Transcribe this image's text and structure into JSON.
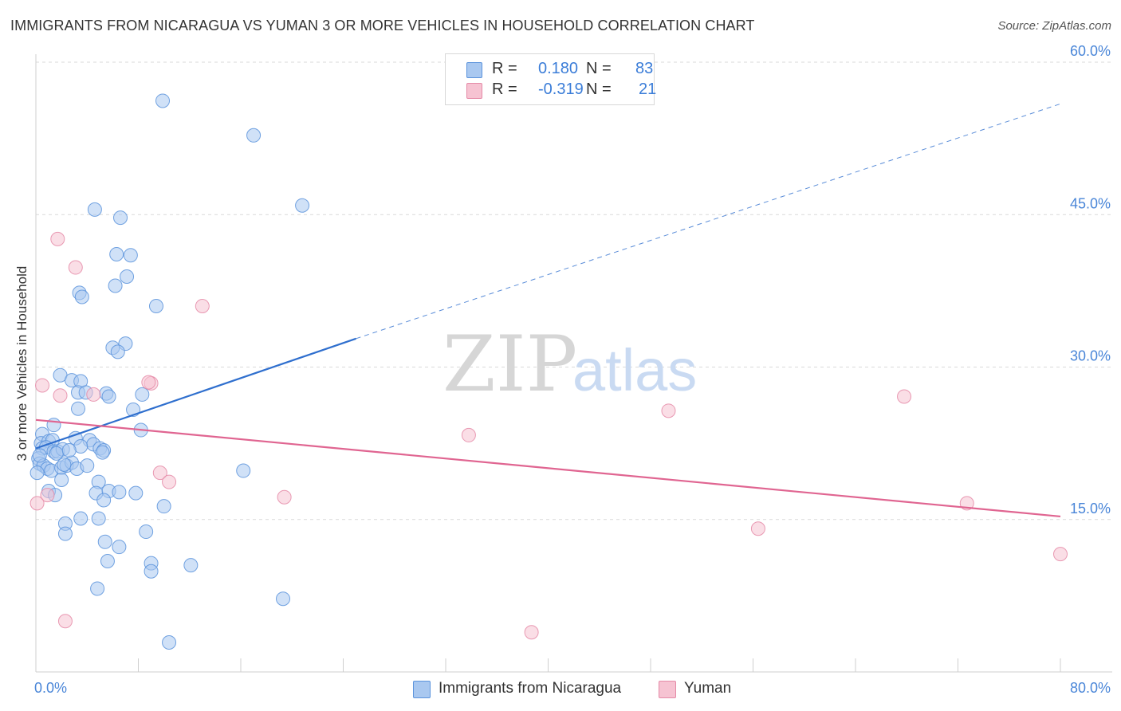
{
  "title": "IMMIGRANTS FROM NICARAGUA VS YUMAN 3 OR MORE VEHICLES IN HOUSEHOLD CORRELATION CHART",
  "source": "Source: ZipAtlas.com",
  "watermark": {
    "zip": "ZIP",
    "atlas": "atlas"
  },
  "stats": [
    {
      "r_label": "R =",
      "r_value": "0.180",
      "n_label": "N =",
      "n_value": "83"
    },
    {
      "r_label": "R =",
      "r_value": "-0.319",
      "n_label": "N =",
      "n_value": "21"
    }
  ],
  "colors": {
    "blue_fill": "#a9c8f0",
    "blue_stroke": "#5b93dc",
    "blue_line": "#2f6fce",
    "pink_fill": "#f6c3d2",
    "pink_stroke": "#e58aa7",
    "pink_line": "#e06591",
    "axis_text": "#4a86d8",
    "grid": "#d9d9d9"
  },
  "chart_data": {
    "type": "scatter",
    "title": "IMMIGRANTS FROM NICARAGUA VS YUMAN 3 OR MORE VEHICLES IN HOUSEHOLD CORRELATION CHART",
    "xlabel": "",
    "ylabel": "3 or more Vehicles in Household",
    "xlim": [
      0,
      80
    ],
    "ylim": [
      0,
      60
    ],
    "x_tick_labels": [
      {
        "value": 0,
        "label": "0.0%"
      },
      {
        "value": 80,
        "label": "80.0%"
      }
    ],
    "y_tick_labels": [
      {
        "value": 15,
        "label": "15.0%"
      },
      {
        "value": 30,
        "label": "30.0%"
      },
      {
        "value": 45,
        "label": "45.0%"
      },
      {
        "value": 60,
        "label": "60.0%"
      }
    ],
    "x_minor_ticks": [
      8,
      16,
      24,
      32,
      40,
      48,
      56,
      64,
      72,
      80
    ],
    "grid": true,
    "legend": "bottom-center",
    "series": [
      {
        "name": "Immigrants from Nicaragua",
        "color": "#a9c8f0",
        "trend": {
          "x_start": 0,
          "y_start": 22.0,
          "x_end_solid": 25,
          "y_end_solid": 32.8,
          "x_end_dashed": 80,
          "y_end_dashed": 55.9
        },
        "points": [
          [
            9.9,
            56.2
          ],
          [
            17.0,
            52.8
          ],
          [
            20.8,
            45.9
          ],
          [
            4.6,
            45.5
          ],
          [
            6.6,
            44.7
          ],
          [
            6.3,
            41.1
          ],
          [
            7.4,
            41.0
          ],
          [
            7.1,
            38.9
          ],
          [
            6.2,
            38.0
          ],
          [
            3.4,
            37.3
          ],
          [
            3.6,
            36.9
          ],
          [
            9.4,
            36.0
          ],
          [
            7.0,
            32.3
          ],
          [
            6.0,
            31.9
          ],
          [
            6.4,
            31.5
          ],
          [
            1.9,
            29.2
          ],
          [
            2.8,
            28.7
          ],
          [
            3.5,
            28.6
          ],
          [
            3.3,
            27.5
          ],
          [
            3.9,
            27.5
          ],
          [
            5.5,
            27.4
          ],
          [
            5.7,
            27.1
          ],
          [
            8.3,
            27.3
          ],
          [
            3.3,
            25.9
          ],
          [
            7.6,
            25.8
          ],
          [
            1.4,
            24.3
          ],
          [
            8.2,
            23.8
          ],
          [
            0.5,
            23.4
          ],
          [
            0.4,
            22.5
          ],
          [
            1.0,
            22.7
          ],
          [
            1.3,
            22.8
          ],
          [
            4.2,
            22.8
          ],
          [
            3.1,
            23.0
          ],
          [
            4.5,
            22.4
          ],
          [
            0.5,
            22.0
          ],
          [
            0.8,
            22.1
          ],
          [
            1.4,
            21.7
          ],
          [
            1.7,
            21.7
          ],
          [
            2.1,
            21.9
          ],
          [
            1.6,
            21.5
          ],
          [
            5.0,
            22.0
          ],
          [
            5.3,
            21.8
          ],
          [
            3.5,
            22.2
          ],
          [
            5.2,
            21.6
          ],
          [
            0.2,
            21.0
          ],
          [
            0.3,
            20.5
          ],
          [
            0.6,
            20.3
          ],
          [
            0.9,
            20.0
          ],
          [
            1.2,
            19.8
          ],
          [
            2.0,
            20.1
          ],
          [
            2.4,
            20.3
          ],
          [
            2.8,
            20.6
          ],
          [
            3.2,
            20.0
          ],
          [
            4.0,
            20.3
          ],
          [
            2.2,
            20.4
          ],
          [
            0.1,
            19.6
          ],
          [
            2.0,
            18.9
          ],
          [
            4.9,
            18.7
          ],
          [
            16.2,
            19.8
          ],
          [
            1.0,
            17.8
          ],
          [
            1.5,
            17.4
          ],
          [
            4.7,
            17.6
          ],
          [
            5.7,
            17.8
          ],
          [
            6.5,
            17.7
          ],
          [
            7.8,
            17.6
          ],
          [
            5.3,
            16.9
          ],
          [
            10.0,
            16.3
          ],
          [
            3.5,
            15.1
          ],
          [
            4.9,
            15.1
          ],
          [
            2.3,
            14.6
          ],
          [
            2.3,
            13.6
          ],
          [
            8.6,
            13.8
          ],
          [
            5.4,
            12.8
          ],
          [
            6.5,
            12.3
          ],
          [
            9.0,
            10.7
          ],
          [
            12.1,
            10.5
          ],
          [
            5.6,
            10.9
          ],
          [
            9.0,
            9.9
          ],
          [
            4.8,
            8.2
          ],
          [
            19.3,
            7.2
          ],
          [
            10.4,
            2.9
          ],
          [
            0.3,
            21.3
          ],
          [
            2.6,
            21.8
          ]
        ]
      },
      {
        "name": "Yuman",
        "color": "#f6c3d2",
        "trend": {
          "x_start": 0,
          "y_start": 24.8,
          "x_end": 80,
          "y_end": 15.3
        },
        "points": [
          [
            1.7,
            42.6
          ],
          [
            3.1,
            39.8
          ],
          [
            13.0,
            36.0
          ],
          [
            0.5,
            28.2
          ],
          [
            1.9,
            27.2
          ],
          [
            9.0,
            28.4
          ],
          [
            4.5,
            27.3
          ],
          [
            8.8,
            28.5
          ],
          [
            67.8,
            27.1
          ],
          [
            49.4,
            25.7
          ],
          [
            33.8,
            23.3
          ],
          [
            9.7,
            19.6
          ],
          [
            10.4,
            18.7
          ],
          [
            0.9,
            17.4
          ],
          [
            19.4,
            17.2
          ],
          [
            0.1,
            16.6
          ],
          [
            72.7,
            16.6
          ],
          [
            56.4,
            14.1
          ],
          [
            80.0,
            11.6
          ],
          [
            2.3,
            5.0
          ],
          [
            38.7,
            3.9
          ]
        ]
      }
    ]
  }
}
